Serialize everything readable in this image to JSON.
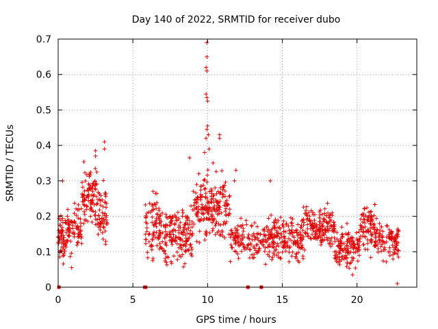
{
  "chart_data": {
    "type": "scatter",
    "title": "Day 140 of 2022, SRMTID for receiver dubo",
    "xlabel": "GPS time / hours",
    "ylabel": "SRMTID / TECUs",
    "xlim": [
      0,
      24
    ],
    "ylim": [
      0,
      0.7
    ],
    "xticks": [
      0,
      5,
      10,
      15,
      20
    ],
    "xtick_labels": [
      "0",
      "5",
      "10",
      "15",
      "20"
    ],
    "yticks": [
      0,
      0.1,
      0.2,
      0.3,
      0.4,
      0.5,
      0.6,
      0.7
    ],
    "ytick_labels": [
      "0",
      "0.1",
      "0.2",
      "0.3",
      "0.4",
      "0.5",
      "0.6",
      "0.7"
    ],
    "grid": true,
    "marker": "+",
    "color": "#e00000",
    "zero_points": [
      0.05,
      5.8,
      5.85,
      12.7,
      13.6
    ],
    "clusters": [
      {
        "x_start": 0.0,
        "x_end": 0.6,
        "center": 0.14,
        "spread": 0.06,
        "count": 60
      },
      {
        "x_start": 0.6,
        "x_end": 1.6,
        "center": 0.17,
        "spread": 0.06,
        "count": 70
      },
      {
        "x_start": 1.6,
        "x_end": 2.6,
        "center": 0.25,
        "spread": 0.08,
        "count": 90
      },
      {
        "x_start": 2.6,
        "x_end": 3.3,
        "center": 0.21,
        "spread": 0.08,
        "count": 60
      },
      {
        "x_start": 5.8,
        "x_end": 7.0,
        "center": 0.17,
        "spread": 0.08,
        "count": 90
      },
      {
        "x_start": 7.0,
        "x_end": 9.0,
        "center": 0.14,
        "spread": 0.07,
        "count": 160
      },
      {
        "x_start": 9.0,
        "x_end": 11.5,
        "center": 0.22,
        "spread": 0.09,
        "count": 200
      },
      {
        "x_start": 11.5,
        "x_end": 13.8,
        "center": 0.13,
        "spread": 0.05,
        "count": 120
      },
      {
        "x_start": 13.8,
        "x_end": 16.5,
        "center": 0.14,
        "spread": 0.06,
        "count": 200
      },
      {
        "x_start": 16.5,
        "x_end": 18.5,
        "center": 0.17,
        "spread": 0.05,
        "count": 150
      },
      {
        "x_start": 18.5,
        "x_end": 20.2,
        "center": 0.11,
        "spread": 0.05,
        "count": 130
      },
      {
        "x_start": 20.2,
        "x_end": 21.2,
        "center": 0.17,
        "spread": 0.06,
        "count": 80
      },
      {
        "x_start": 21.2,
        "x_end": 22.8,
        "center": 0.13,
        "spread": 0.05,
        "count": 110
      }
    ],
    "notable_points": [
      [
        9.95,
        0.69
      ],
      [
        9.95,
        0.65
      ],
      [
        9.9,
        0.62
      ],
      [
        9.95,
        0.61
      ],
      [
        9.9,
        0.545
      ],
      [
        9.95,
        0.535
      ],
      [
        10.0,
        0.525
      ],
      [
        10.0,
        0.455
      ],
      [
        9.95,
        0.445
      ],
      [
        10.05,
        0.43
      ],
      [
        9.9,
        0.42
      ],
      [
        10.8,
        0.43
      ],
      [
        10.8,
        0.42
      ],
      [
        3.1,
        0.41
      ],
      [
        3.1,
        0.39
      ],
      [
        2.5,
        0.385
      ],
      [
        2.5,
        0.37
      ],
      [
        9.8,
        0.38
      ],
      [
        10.1,
        0.39
      ],
      [
        8.8,
        0.365
      ],
      [
        11.9,
        0.33
      ],
      [
        11.8,
        0.3
      ],
      [
        0.3,
        0.3
      ],
      [
        14.2,
        0.3
      ],
      [
        22.7,
        0.01
      ],
      [
        19.7,
        0.035
      ],
      [
        0.9,
        0.055
      ]
    ]
  }
}
